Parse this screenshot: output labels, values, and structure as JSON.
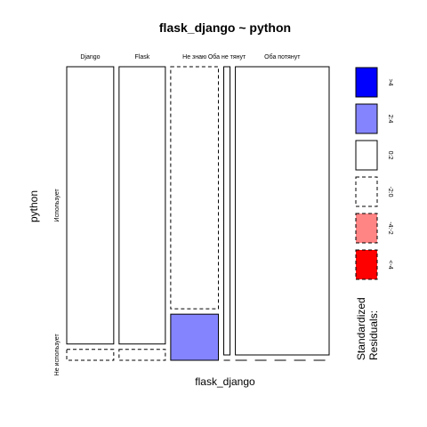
{
  "chart_data": {
    "type": "mosaic",
    "title": "flask_django ~ python",
    "xlabel": "flask_django",
    "ylabel": "python",
    "x_categories": [
      "Django",
      "Flask",
      "Не знаю",
      "Оба не тянут",
      "Оба потянут"
    ],
    "y_categories": [
      "Использует",
      "Не использует"
    ],
    "column_widths": [
      0.195,
      0.192,
      0.198,
      0.026,
      0.389
    ],
    "cell_proportions": [
      [
        0.962,
        0.038
      ],
      [
        0.962,
        0.038
      ],
      [
        0.84,
        0.16
      ],
      [
        1.0,
        0.0
      ],
      [
        1.0,
        0.0
      ]
    ],
    "residual_class": [
      [
        "0:2",
        "-2:0"
      ],
      [
        "0:2",
        "-2:0"
      ],
      [
        "-2:0",
        "2:4"
      ],
      [
        "0:2",
        "-2:0"
      ],
      [
        "0:2",
        "-2:0"
      ]
    ],
    "legend": {
      "title_lines": [
        "Standardized",
        "Residuals:"
      ],
      "items": [
        {
          "label": ">4",
          "fill": "#0000ff",
          "dashed": false
        },
        {
          "label": "2:4",
          "fill": "#8484ff",
          "dashed": false
        },
        {
          "label": "0:2",
          "fill": "#ffffff",
          "dashed": false
        },
        {
          "label": "-2:0",
          "fill": "#ffffff",
          "dashed": true
        },
        {
          "label": "-4:-2",
          "fill": "#ff8484",
          "dashed": true
        },
        {
          "label": "<-4",
          "fill": "#ff0000",
          "dashed": true
        }
      ]
    }
  }
}
